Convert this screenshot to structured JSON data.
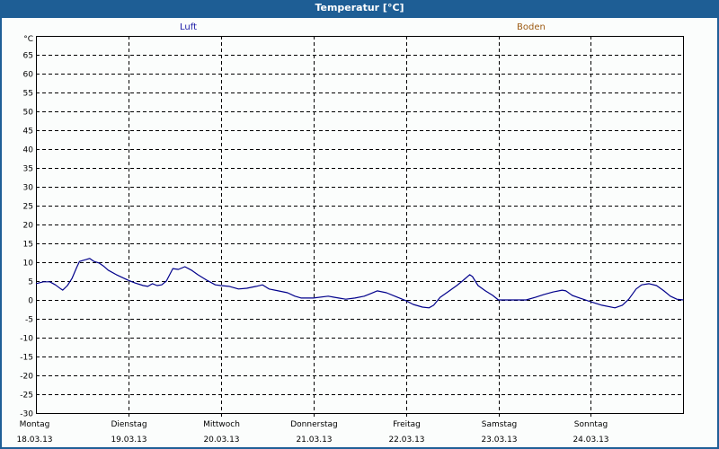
{
  "header": {
    "title": "Temperatur [°C]"
  },
  "legend": [
    {
      "label": "Luft",
      "color": "#1a1aa6"
    },
    {
      "label": "Boden",
      "color": "#9c5a12"
    }
  ],
  "colors": {
    "header_bg": "#1e5e95",
    "plot_bg": "#fbfdfc",
    "grid": "#000000",
    "series_luft": "#00008b"
  },
  "axis": {
    "y_unit": "°C",
    "y_ticks": [
      "65",
      "60",
      "55",
      "50",
      "45",
      "40",
      "35",
      "30",
      "25",
      "20",
      "15",
      "10",
      "5",
      "0",
      "-5",
      "-10",
      "-15",
      "-20",
      "-25",
      "-30"
    ],
    "x_ticks": [
      {
        "day": "Montag",
        "date": "18.03.13"
      },
      {
        "day": "Dienstag",
        "date": "19.03.13"
      },
      {
        "day": "Mittwoch",
        "date": "20.03.13"
      },
      {
        "day": "Donnerstag",
        "date": "21.03.13"
      },
      {
        "day": "Freitag",
        "date": "22.03.13"
      },
      {
        "day": "Samstag",
        "date": "23.03.13"
      },
      {
        "day": "Sonntag",
        "date": "24.03.13"
      }
    ]
  },
  "chart_data": {
    "type": "line",
    "title": "Temperatur [°C]",
    "xlabel": "",
    "ylabel": "°C",
    "ylim": [
      -30,
      70
    ],
    "xlim_days": [
      0,
      7
    ],
    "grid": true,
    "legend_position": "top",
    "categories": [
      "Montag 18.03.13",
      "Dienstag 19.03.13",
      "Mittwoch 20.03.13",
      "Donnerstag 21.03.13",
      "Freitag 22.03.13",
      "Samstag 23.03.13",
      "Sonntag 24.03.13"
    ],
    "series": [
      {
        "name": "Luft",
        "color": "#00008b",
        "x_days": [
          0.0,
          0.08,
          0.15,
          0.21,
          0.27,
          0.29,
          0.34,
          0.39,
          0.44,
          0.47,
          0.51,
          0.54,
          0.58,
          0.63,
          0.68,
          0.73,
          0.78,
          0.87,
          1.0,
          1.07,
          1.16,
          1.21,
          1.26,
          1.31,
          1.36,
          1.41,
          1.48,
          1.54,
          1.61,
          1.68,
          1.75,
          1.85,
          1.94,
          2.0,
          2.09,
          2.19,
          2.28,
          2.38,
          2.45,
          2.52,
          2.62,
          2.72,
          2.8,
          2.87,
          3.0,
          3.16,
          3.23,
          3.35,
          3.45,
          3.55,
          3.62,
          3.69,
          3.79,
          3.88,
          4.0,
          4.08,
          4.18,
          4.25,
          4.3,
          4.37,
          4.47,
          4.55,
          4.61,
          4.69,
          4.72,
          4.78,
          4.86,
          4.94,
          5.0,
          5.11,
          5.2,
          5.3,
          5.4,
          5.49,
          5.59,
          5.69,
          5.73,
          5.8,
          5.88,
          6.0,
          6.12,
          6.26,
          6.34,
          6.41,
          6.49,
          6.55,
          6.63,
          6.71,
          6.79,
          6.86,
          6.93,
          7.0
        ],
        "values": [
          4.3,
          4.8,
          4.8,
          4.0,
          2.9,
          2.6,
          3.8,
          5.7,
          8.6,
          10.2,
          10.5,
          10.7,
          11.0,
          10.2,
          9.8,
          9.0,
          7.9,
          6.7,
          5.2,
          4.5,
          3.8,
          3.6,
          4.3,
          3.8,
          4.0,
          5.0,
          8.3,
          8.1,
          8.8,
          7.9,
          6.7,
          5.2,
          4.0,
          3.8,
          3.6,
          2.9,
          3.1,
          3.6,
          4.0,
          2.9,
          2.4,
          1.9,
          1.0,
          0.5,
          0.5,
          1.0,
          0.7,
          0.2,
          0.5,
          1.0,
          1.7,
          2.4,
          1.9,
          1.0,
          -0.2,
          -1.2,
          -1.9,
          -2.1,
          -1.4,
          0.7,
          2.4,
          3.8,
          5.0,
          6.7,
          6.2,
          3.8,
          2.4,
          1.2,
          0.0,
          0.0,
          0.0,
          0.0,
          0.7,
          1.4,
          2.1,
          2.6,
          2.4,
          1.2,
          0.5,
          -0.5,
          -1.4,
          -2.1,
          -1.4,
          0.2,
          2.9,
          4.0,
          4.3,
          3.8,
          2.4,
          1.0,
          0.2,
          0.0
        ]
      },
      {
        "name": "Boden",
        "color": "#9c5a12",
        "x_days": [],
        "values": []
      }
    ]
  }
}
